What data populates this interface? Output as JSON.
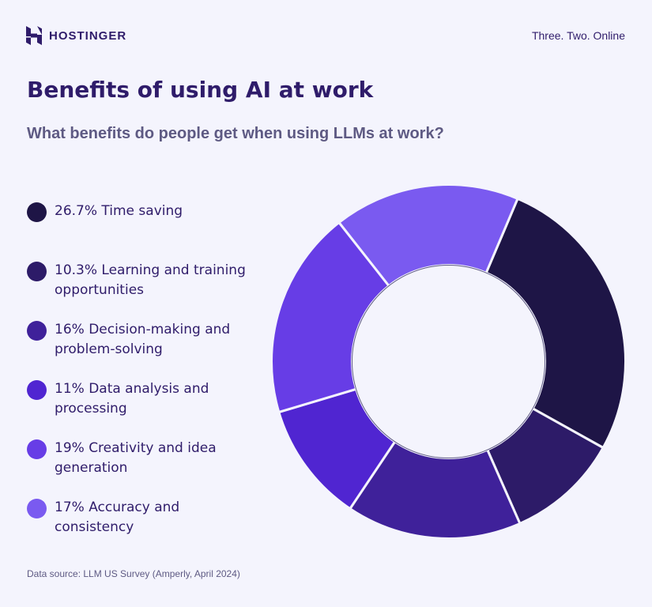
{
  "brand": {
    "name": "HOSTINGER",
    "tagline": "Three. Two. Online"
  },
  "colors": {
    "background": "#f4f4fd",
    "text": "#2f1c6a",
    "muted": "#5e5a83"
  },
  "chart_data": {
    "type": "pie",
    "title": "Benefits of using AI at work",
    "subtitle": "What benefits do people get when using LLMs at work?",
    "slices": [
      {
        "label": "26.7% Time saving",
        "value": 26.7,
        "color": "#1e1546"
      },
      {
        "label": "10.3% Learning and training opportunities",
        "value": 10.3,
        "color": "#2d1b68"
      },
      {
        "label": "16% Decision-making and problem-solving",
        "value": 16,
        "color": "#3f219a"
      },
      {
        "label": "11% Data analysis and processing",
        "value": 11,
        "color": "#5025d1"
      },
      {
        "label": "19% Creativity and idea generation",
        "value": 19,
        "color": "#673de6"
      },
      {
        "label": "17% Accuracy and consistency",
        "value": 17,
        "color": "#7a5af0"
      }
    ],
    "start_angle_deg": -67,
    "legend_placement": "left",
    "source": "Data source: LLM US Survey (Amperly, April 2024)"
  }
}
